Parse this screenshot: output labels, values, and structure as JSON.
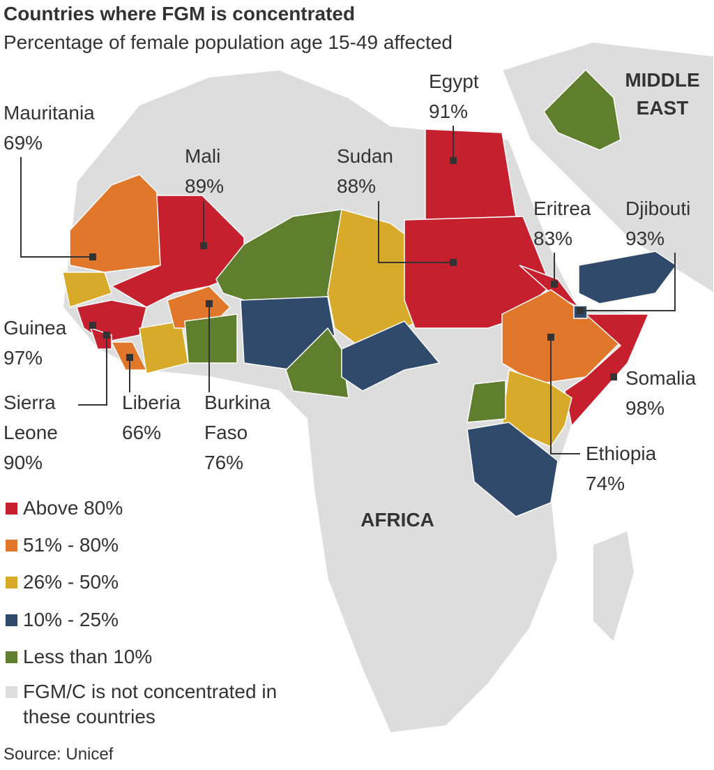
{
  "header": {
    "title": "Countries where FGM is concentrated",
    "subtitle": "Percentage of female population age 15-49 affected"
  },
  "regions": [
    "MIDDLE EAST",
    "AFRICA"
  ],
  "countries": [
    {
      "name": "Mauritania",
      "value": "69%"
    },
    {
      "name": "Mali",
      "value": "89%"
    },
    {
      "name": "Sudan",
      "value": "88%"
    },
    {
      "name": "Egypt",
      "value": "91%"
    },
    {
      "name": "Eritrea",
      "value": "83%"
    },
    {
      "name": "Djibouti",
      "value": "93%"
    },
    {
      "name": "Somalia",
      "value": "98%"
    },
    {
      "name": "Ethiopia",
      "value": "74%"
    },
    {
      "name": "Guinea",
      "value": "97%"
    },
    {
      "name": "Sierra Leone",
      "value": "90%"
    },
    {
      "name": "Liberia",
      "value": "66%"
    },
    {
      "name": "Burkina Faso",
      "value": "76%"
    }
  ],
  "legend": [
    "Above 80%",
    "51% - 80%",
    "26% - 50%",
    "10% - 25%",
    "Less than 10%",
    "FGM/C is not concentrated in these countries"
  ],
  "source": "Source: Unicef"
}
